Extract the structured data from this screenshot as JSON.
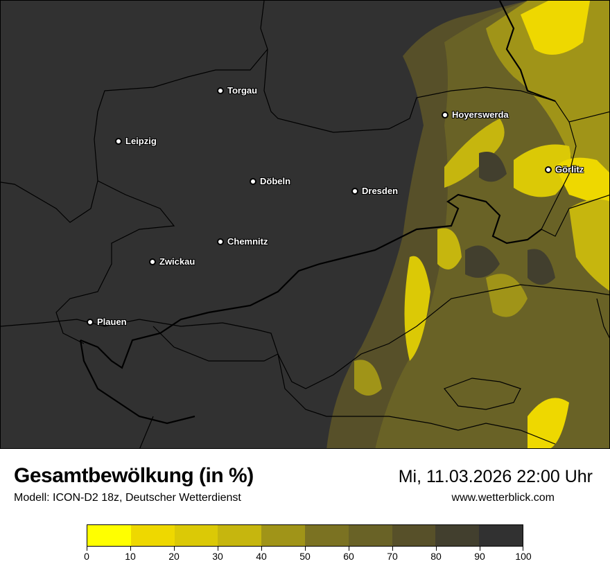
{
  "header": {
    "title": "Gesamtbewölkung (in %)",
    "subtitle": "Modell: ICON-D2 18z, Deutscher Wetterdienst",
    "datetime": "Mi, 11.03.2026 22:00 Uhr",
    "website": "www.wetterblick.com"
  },
  "map": {
    "background_color": "#313131",
    "cities": [
      "Torgau",
      "Leipzig",
      "Hoyerswerda",
      "Görlitz",
      "Döbeln",
      "Dresden",
      "Chemnitz",
      "Zwickau",
      "Plauen"
    ]
  },
  "legend": {
    "colors": [
      "#ffff00",
      "#eed800",
      "#dbc906",
      "#c6b60e",
      "#a09418",
      "#7b7222",
      "#696226",
      "#575029",
      "#423f2e",
      "#313131"
    ],
    "ticks": [
      "0",
      "10",
      "20",
      "30",
      "40",
      "50",
      "60",
      "70",
      "80",
      "90",
      "100"
    ]
  }
}
